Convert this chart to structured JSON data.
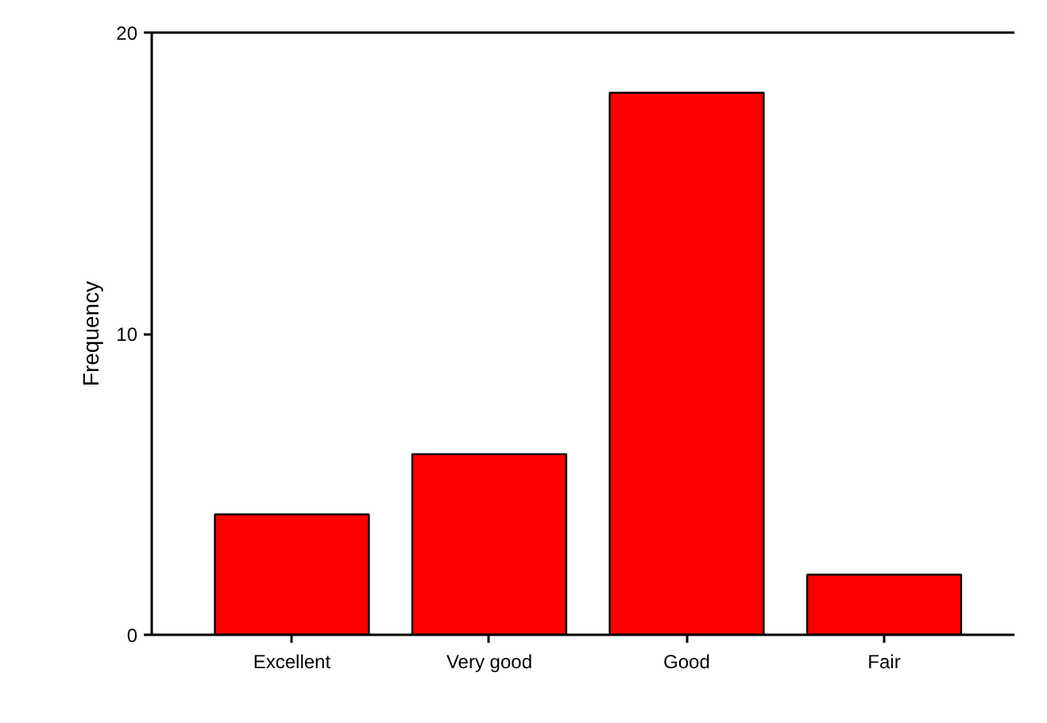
{
  "chart_data": {
    "type": "bar",
    "ylabel": "Frequency",
    "categories": [
      "Excellent",
      "Very good",
      "Good",
      "Fair"
    ],
    "values": [
      4,
      6,
      18,
      2
    ],
    "color": "#ff0000",
    "ylim": [
      0,
      20
    ],
    "yticks": [
      0,
      10,
      20
    ],
    "grid": false
  }
}
